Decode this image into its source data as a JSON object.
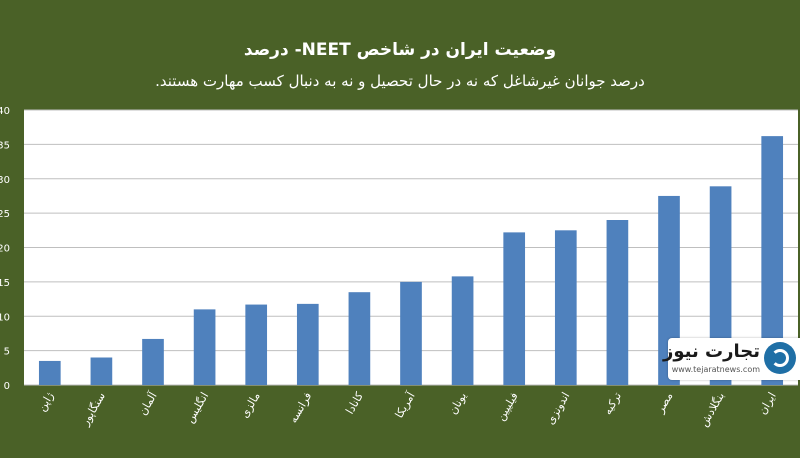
{
  "header": {
    "title": "وضعیت ایران در شاخص NEET- درصد",
    "subtitle": "درصد جوانان غیرشاغل که نه در حال تحصیل و نه به دنبال کسب مهارت هستند."
  },
  "watermark": {
    "name": "تجارت نیوز",
    "url": "www.tejaratnews.com"
  },
  "colors": {
    "background": "#4a6127",
    "plot_area": "#ffffff",
    "bar": "#4f81bd",
    "grid": "#bfbfbf",
    "text": "#ffffff"
  },
  "chart_data": {
    "type": "bar",
    "title": "وضعیت ایران در شاخص NEET- درصد",
    "subtitle": "درصد جوانان غیرشاغل که نه در حال تحصیل و نه به دنبال کسب مهارت هستند.",
    "categories": [
      "ژاپن",
      "سنگاپور",
      "آلمان",
      "انگلیس",
      "مالزی",
      "فرانسه",
      "کانادا",
      "آمریکا",
      "یونان",
      "فیلیپین",
      "اندونزی",
      "ترکیه",
      "مصر",
      "بنگلادش",
      "ایران"
    ],
    "values": [
      3.5,
      4,
      6.7,
      11,
      11.7,
      11.8,
      13.5,
      15,
      15.8,
      22.2,
      22.5,
      24,
      27.5,
      28.9,
      36.2
    ],
    "ylim": [
      0,
      40
    ],
    "yticks": [
      0,
      5,
      10,
      15,
      20,
      25,
      30,
      35,
      40
    ],
    "grid": true,
    "legend": "none"
  }
}
